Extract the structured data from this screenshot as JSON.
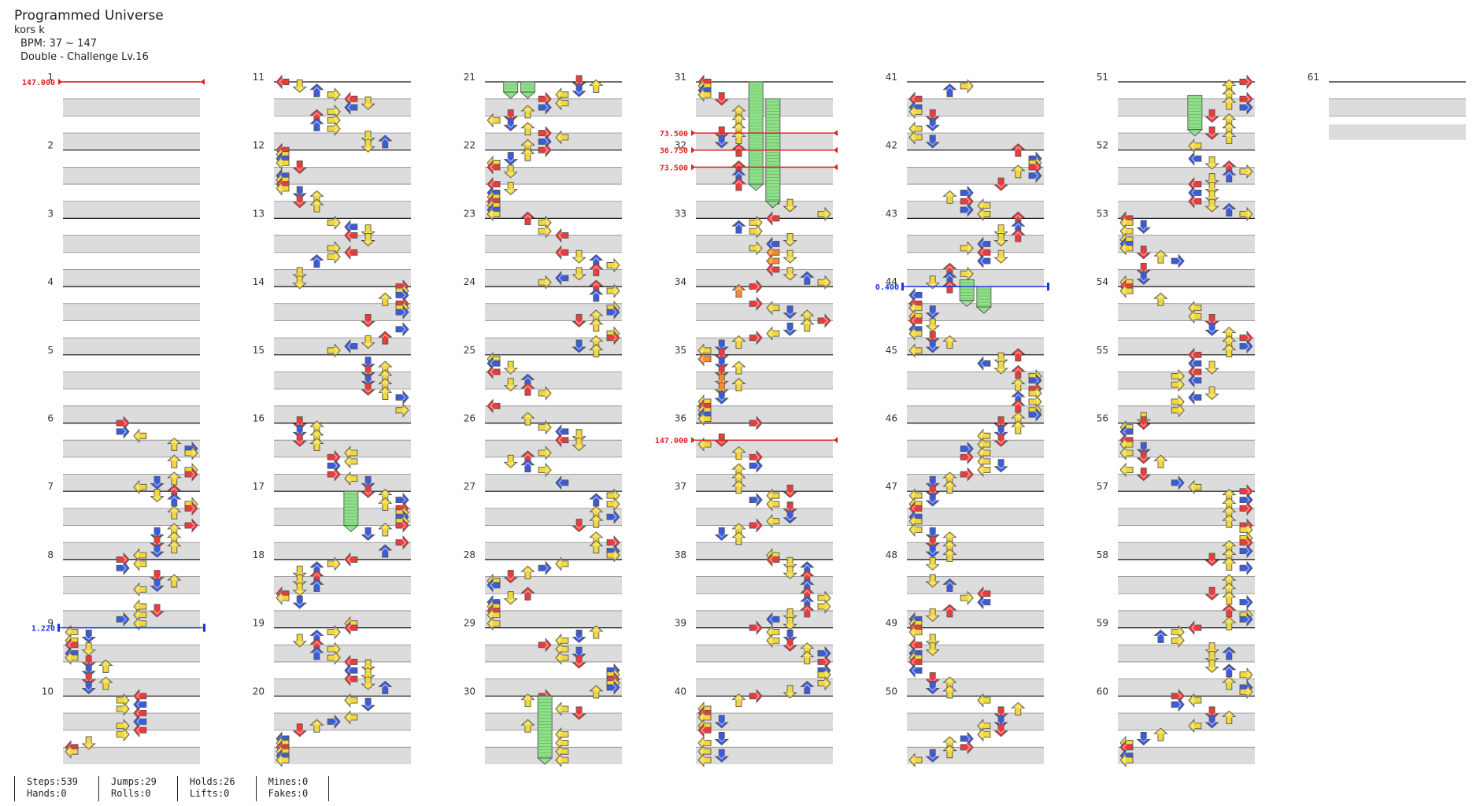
{
  "song": {
    "title": "Programmed Universe",
    "artist": "kors k",
    "bpm": "BPM: 37 ~ 147",
    "chart": "Double - Challenge Lv.16"
  },
  "measure_numbers": [
    "1",
    "2",
    "3",
    "4",
    "5",
    "6",
    "7",
    "8",
    "9",
    "10",
    "11",
    "12",
    "13",
    "14",
    "15",
    "16",
    "17",
    "18",
    "19",
    "20",
    "21",
    "22",
    "23",
    "24",
    "25",
    "26",
    "27",
    "28",
    "29",
    "30",
    "31",
    "32",
    "33",
    "34",
    "35",
    "36",
    "37",
    "38",
    "39",
    "40",
    "41",
    "42",
    "43",
    "44",
    "45",
    "46",
    "47",
    "48",
    "49",
    "50",
    "51",
    "52",
    "53",
    "54",
    "55",
    "56",
    "57",
    "58",
    "59",
    "60",
    "61"
  ],
  "markers": [
    {
      "label": "147.000",
      "measure": 1,
      "offset": 0,
      "type": "bpm"
    },
    {
      "label": "1.220",
      "measure": 9,
      "offset": 0,
      "type": "scroll"
    },
    {
      "label": "73.500",
      "measure": 32,
      "offset": -0.25,
      "type": "bpm"
    },
    {
      "label": "36.750",
      "measure": 32,
      "offset": 0,
      "type": "bpm"
    },
    {
      "label": "73.500",
      "measure": 32,
      "offset": 0.25,
      "type": "bpm"
    },
    {
      "label": "147.000",
      "measure": 36,
      "offset": 0.25,
      "type": "bpm"
    },
    {
      "label": "0.400",
      "measure": 44,
      "offset": 0,
      "type": "scroll"
    }
  ],
  "stats": [
    [
      "Steps:539",
      "Hands:0"
    ],
    [
      "Jumps:29",
      "Rolls:0"
    ],
    [
      "Holds:26",
      "Lifts:0"
    ],
    [
      "Mines:0",
      "Fakes:0"
    ]
  ],
  "colors": {
    "quarter": "#ee3a3a",
    "eighth": "#3b5bdb",
    "sixteenth": "#f2d83c",
    "twelfth": "#ff8a2a",
    "hold": "#8ee08a",
    "bpm_marker": "#e02020",
    "scroll_marker": "#1a33e6",
    "shaded_row": "#dcdcdc"
  },
  "icons": [
    "arrow-left-icon",
    "arrow-down-icon",
    "arrow-up-icon",
    "arrow-right-icon",
    "hold-body-icon"
  ]
}
